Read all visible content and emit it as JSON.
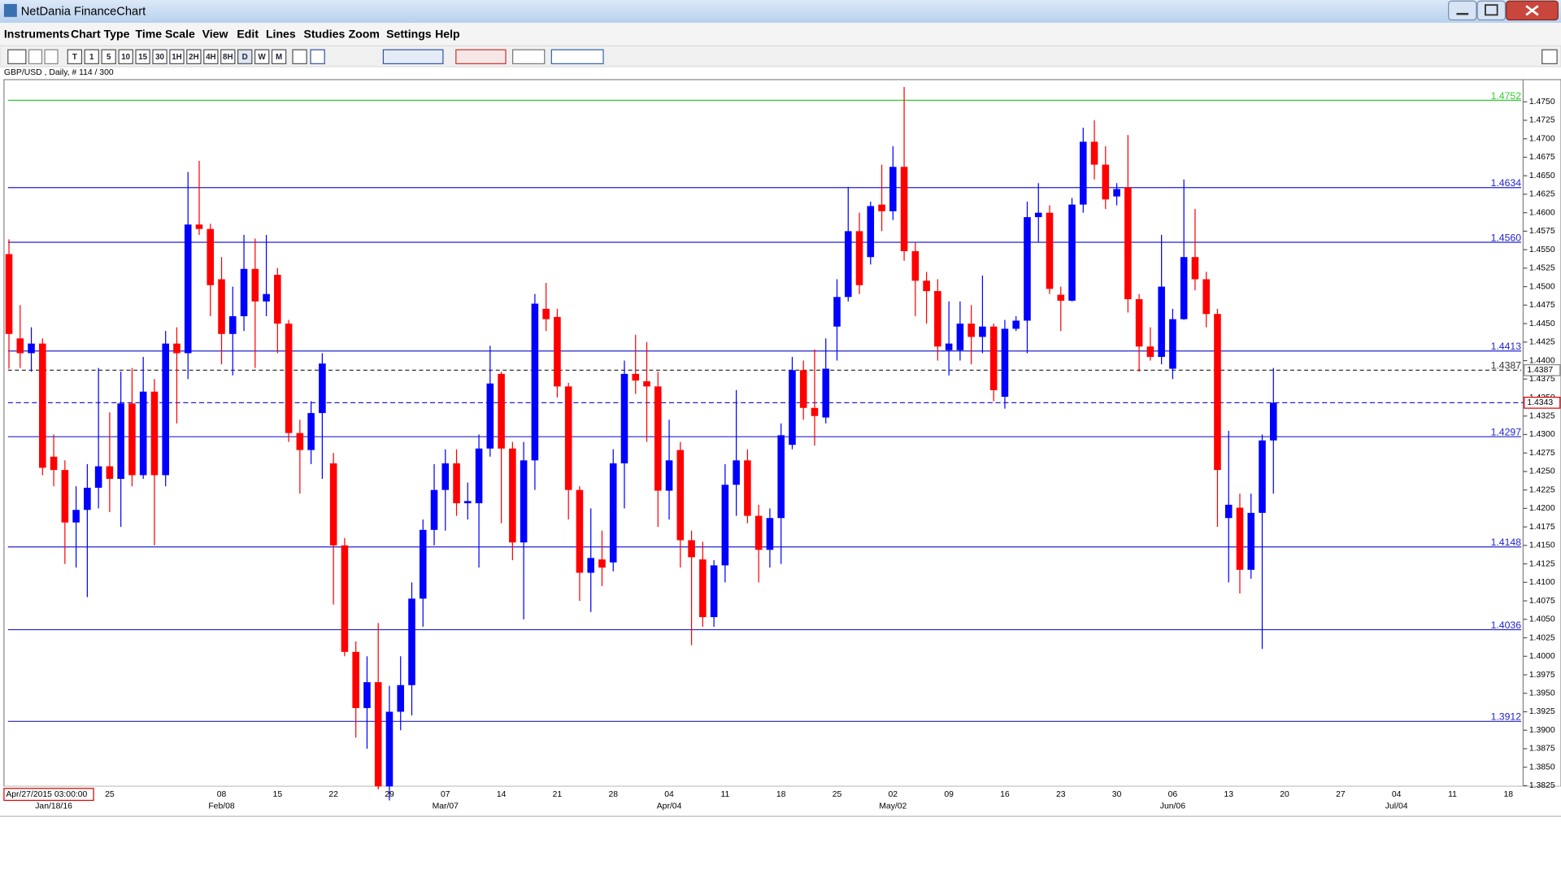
{
  "window_title": "NetDania FinanceChart",
  "menu": [
    "Instruments",
    "Chart Type",
    "Time Scale",
    "View",
    "Edit",
    "Lines",
    "Studies",
    "Zoom",
    "Settings",
    "Help"
  ],
  "toolbar": [
    "T",
    "1",
    "5",
    "10",
    "15",
    "30",
    "1H",
    "2H",
    "4H",
    "8H",
    "D",
    "W",
    "M"
  ],
  "chart_data": {
    "type": "candlestick",
    "title": "GBP/USD , Daily, # 114 / 300",
    "cursor_label": "Apr/27/2015 03:00:00",
    "up_color": "#0000ff",
    "down_color": "#ff0000",
    "categories": [
      null,
      null,
      null,
      null,
      null,
      null,
      null,
      null,
      null,
      "25",
      null,
      null,
      null,
      null,
      null,
      null,
      null,
      null,
      null,
      "08",
      null,
      null,
      null,
      null,
      "15",
      null,
      null,
      null,
      null,
      "22",
      null,
      null,
      null,
      null,
      "29",
      null,
      null,
      null,
      null,
      "07",
      null,
      null,
      null,
      null,
      "14",
      null,
      null,
      null,
      null,
      "21",
      null,
      null,
      null,
      null,
      "28",
      null,
      null,
      null,
      null,
      "04",
      null,
      null,
      null,
      null,
      "11",
      null,
      null,
      null,
      null,
      "18",
      null,
      null,
      null,
      null,
      "25",
      null,
      null,
      null,
      null,
      "02",
      null,
      null,
      null,
      null,
      "09",
      null,
      null,
      null,
      null,
      "16",
      null,
      null,
      null,
      null,
      "23",
      null,
      null,
      null,
      null,
      "30",
      null,
      null,
      null,
      null,
      "06",
      null,
      null,
      null,
      null,
      "13",
      null,
      null,
      null,
      null,
      "20",
      null,
      null,
      null,
      null,
      "27",
      null,
      null,
      null,
      null,
      "04",
      null,
      null,
      null,
      null,
      "11",
      null,
      null,
      null,
      null,
      "18",
      null
    ],
    "category_sublabels": [
      null,
      null,
      null,
      null,
      "Jan/18/16",
      null,
      null,
      null,
      null,
      null,
      null,
      null,
      null,
      null,
      null,
      null,
      null,
      null,
      null,
      "Feb/08",
      null,
      null,
      null,
      null,
      null,
      null,
      null,
      null,
      null,
      null,
      null,
      null,
      null,
      null,
      null,
      null,
      null,
      null,
      null,
      "Mar/07",
      null,
      null,
      null,
      null,
      null,
      null,
      null,
      null,
      null,
      null,
      null,
      null,
      null,
      null,
      null,
      null,
      null,
      null,
      null,
      "Apr/04",
      null,
      null,
      null,
      null,
      null,
      null,
      null,
      null,
      null,
      null,
      null,
      null,
      null,
      null,
      null,
      null,
      null,
      null,
      null,
      "May/02",
      null,
      null,
      null,
      null,
      null,
      null,
      null,
      null,
      null,
      null,
      null,
      null,
      null,
      null,
      null,
      null,
      null,
      null,
      null,
      null,
      null,
      null,
      null,
      null,
      "Jun/06",
      null,
      null,
      null,
      null,
      null,
      null,
      null,
      null,
      null,
      null,
      null,
      null,
      null,
      null,
      null,
      null,
      null,
      null,
      null,
      "Jul/04",
      null,
      null,
      null,
      null,
      null,
      null,
      null,
      null,
      null,
      null,
      null
    ],
    "open": [
      1.4544,
      1.443,
      1.441,
      1.4423,
      1.427,
      1.4252,
      1.4181,
      1.4198,
      1.4228,
      1.4257,
      1.424,
      1.4342,
      1.4245,
      1.4358,
      1.4245,
      1.4423,
      1.441,
      1.4584,
      1.4578,
      1.451,
      1.4436,
      1.446,
      1.4524,
      1.448,
      1.4516,
      1.445,
      1.4302,
      1.4279,
      1.4329,
      1.4261,
      1.415,
      1.4006,
      1.393,
      1.3965,
      1.3824,
      1.3925,
      1.3961,
      1.4078,
      1.4171,
      1.4225,
      1.4261,
      1.4207,
      1.4207,
      1.4281,
      1.4382,
      1.4281,
      1.4154,
      1.4265,
      1.447,
      1.4459,
      1.4365,
      1.4225,
      1.4113,
      1.4131,
      1.4127,
      1.4261,
      1.4382,
      1.4372,
      1.4365,
      1.4224,
      1.4279,
      1.4157,
      1.4131,
      1.4053,
      1.4123,
      1.4232,
      1.4265,
      1.419,
      1.4144,
      1.4187,
      1.4286,
      1.4387,
      1.4336,
      1.4323,
      1.4446,
      1.4486,
      1.4575,
      1.454,
      1.4611,
      1.4602,
      1.4662,
      1.4548,
      1.4508,
      1.4494,
      1.4414,
      1.4414,
      1.445,
      1.4432,
      1.4446,
      1.4351,
      1.4443,
      1.4454,
      1.4594,
      1.46,
      1.4489,
      1.4481,
      1.4611,
      1.4696,
      1.4665,
      1.4622,
      1.4634,
      1.4483,
      1.4419,
      1.4405,
      1.4389,
      1.4456,
      1.454,
      1.451,
      1.4463,
      1.4187,
      1.4201,
      1.4117,
      1.4194,
      1.4292,
      null,
      null,
      null,
      null,
      null,
      null,
      null,
      null,
      null,
      null,
      null,
      null,
      null,
      null,
      null,
      null,
      null,
      null,
      null,
      null,
      null,
      null
    ],
    "high": [
      1.4564,
      1.4475,
      1.4445,
      1.443,
      1.43,
      1.4265,
      1.423,
      1.426,
      1.439,
      1.433,
      1.4385,
      1.439,
      1.4405,
      1.4375,
      1.444,
      1.4445,
      1.4655,
      1.467,
      1.4585,
      1.454,
      1.45,
      1.457,
      1.4565,
      1.457,
      1.4525,
      1.4455,
      1.432,
      1.4345,
      1.441,
      1.4275,
      1.416,
      1.402,
      1.4,
      1.4045,
      1.396,
      1.4,
      1.41,
      1.4185,
      1.426,
      1.428,
      1.428,
      1.4235,
      1.43,
      1.442,
      1.4385,
      1.429,
      1.429,
      1.449,
      1.4505,
      1.447,
      1.437,
      1.423,
      1.42,
      1.417,
      1.428,
      1.44,
      1.4435,
      1.4425,
      1.4385,
      1.432,
      1.429,
      1.417,
      1.4155,
      1.413,
      1.426,
      1.436,
      1.428,
      1.4205,
      1.42,
      1.4315,
      1.4405,
      1.44,
      1.4415,
      1.443,
      1.451,
      1.4635,
      1.46,
      1.4615,
      1.4665,
      1.469,
      1.477,
      1.456,
      1.452,
      1.451,
      1.448,
      1.448,
      1.4475,
      1.4515,
      1.445,
      1.4455,
      1.446,
      1.4615,
      1.464,
      1.461,
      1.45,
      1.462,
      1.4715,
      1.4725,
      1.469,
      1.464,
      1.4705,
      1.449,
      1.4445,
      1.457,
      1.447,
      1.4645,
      1.4605,
      1.452,
      1.447,
      1.4305,
      1.422,
      1.422,
      1.43,
      1.439,
      null,
      null,
      null,
      null,
      null,
      null,
      null,
      null,
      null,
      null,
      null,
      null,
      null,
      null,
      null,
      null,
      null,
      null,
      null,
      null,
      null,
      null
    ],
    "low": [
      1.4389,
      1.439,
      1.4385,
      1.4245,
      1.423,
      1.4125,
      1.412,
      1.408,
      1.42,
      1.4195,
      1.4175,
      1.423,
      1.424,
      1.415,
      1.423,
      1.4315,
      1.4375,
      1.457,
      1.446,
      1.4395,
      1.438,
      1.444,
      1.439,
      1.446,
      1.441,
      1.429,
      1.422,
      1.426,
      1.424,
      1.407,
      1.4,
      1.389,
      1.3875,
      1.382,
      1.3805,
      1.39,
      1.392,
      1.404,
      1.415,
      1.417,
      1.419,
      1.4185,
      1.412,
      1.427,
      1.418,
      1.413,
      1.405,
      1.4225,
      1.444,
      1.435,
      1.4185,
      1.4075,
      1.406,
      1.4095,
      1.4115,
      1.42,
      1.4355,
      1.429,
      1.4175,
      1.4185,
      1.412,
      1.4015,
      1.404,
      1.404,
      1.41,
      1.419,
      1.418,
      1.41,
      1.412,
      1.4125,
      1.428,
      1.432,
      1.4285,
      1.4315,
      1.44,
      1.448,
      1.449,
      1.453,
      1.4575,
      1.459,
      1.4535,
      1.446,
      1.445,
      1.44,
      1.438,
      1.44,
      1.4395,
      1.441,
      1.4345,
      1.4335,
      1.444,
      1.441,
      1.456,
      1.449,
      1.444,
      1.448,
      1.46,
      1.4645,
      1.4605,
      1.461,
      1.4465,
      1.4385,
      1.44,
      1.4395,
      1.4375,
      1.4455,
      1.4495,
      1.4445,
      1.4175,
      1.41,
      1.4085,
      1.4105,
      1.401,
      1.422,
      null,
      null,
      null,
      null,
      null,
      null,
      null,
      null,
      null,
      null,
      null,
      null,
      null,
      null,
      null,
      null,
      null,
      null,
      null,
      null,
      null,
      null
    ],
    "close": [
      1.4436,
      1.441,
      1.4423,
      1.4255,
      1.4252,
      1.4181,
      1.4198,
      1.4228,
      1.4257,
      1.424,
      1.4342,
      1.4245,
      1.4358,
      1.4245,
      1.4423,
      1.441,
      1.4584,
      1.4578,
      1.4502,
      1.4436,
      1.446,
      1.4524,
      1.448,
      1.449,
      1.445,
      1.4302,
      1.4279,
      1.4329,
      1.4396,
      1.415,
      1.4006,
      1.393,
      1.3965,
      1.3824,
      1.3925,
      1.3961,
      1.4078,
      1.4171,
      1.4225,
      1.4261,
      1.4207,
      1.421,
      1.4281,
      1.4369,
      1.4281,
      1.4154,
      1.4265,
      1.4477,
      1.4456,
      1.4365,
      1.4225,
      1.4113,
      1.4133,
      1.412,
      1.4261,
      1.4382,
      1.4373,
      1.4365,
      1.4224,
      1.4265,
      1.4157,
      1.4134,
      1.4053,
      1.4123,
      1.4232,
      1.4265,
      1.419,
      1.4144,
      1.4187,
      1.4299,
      1.4387,
      1.4336,
      1.4325,
      1.4389,
      1.4486,
      1.4575,
      1.4502,
      1.4609,
      1.4602,
      1.4662,
      1.4548,
      1.4508,
      1.4494,
      1.4419,
      1.4423,
      1.445,
      1.4432,
      1.4446,
      1.436,
      1.4443,
      1.4454,
      1.4594,
      1.46,
      1.4497,
      1.4481,
      1.4611,
      1.4696,
      1.4665,
      1.4618,
      1.4632,
      1.4483,
      1.4419,
      1.4405,
      1.45,
      1.4456,
      1.454,
      1.451,
      1.4463,
      1.4252,
      1.4205,
      1.4117,
      1.4194,
      1.4292,
      1.4343,
      null,
      null,
      null,
      null,
      null,
      null,
      null,
      null,
      null,
      null,
      null,
      null,
      null,
      null,
      null,
      null,
      null,
      null,
      null,
      null,
      null,
      null
    ],
    "levels": {
      "values": [
        1.4752,
        1.4634,
        1.456,
        1.4413,
        1.4387,
        1.4297,
        1.4148,
        1.4036,
        1.3912
      ],
      "value_labels": [
        "1.4752",
        "1.4634",
        "1.4560",
        "1.4413",
        "1.4387",
        "1.4297",
        "1.4148",
        "1.4036",
        "1.3912"
      ],
      "colors": [
        "#33cc33",
        "#2222cc",
        "#2222cc",
        "#2222cc",
        "#333333",
        "#2222cc",
        "#2222cc",
        "#2222cc",
        "#2222cc"
      ],
      "dashed": [
        false,
        false,
        false,
        false,
        true,
        false,
        false,
        false,
        false
      ]
    },
    "last_price": {
      "value": 1.4343,
      "label": "1.4343",
      "color": "#2222cc"
    },
    "ylim": [
      1.3824,
      1.478
    ],
    "yticks": [
      {
        "value": 1.475,
        "label": "1.4750"
      },
      1.4725,
      {
        "value": 1.47,
        "label": "1.4700"
      },
      1.4675,
      {
        "value": 1.465,
        "label": "1.4650"
      },
      1.4625,
      {
        "value": 1.46,
        "label": "1.4600"
      },
      1.4575,
      {
        "value": 1.455,
        "label": "1.4550"
      },
      1.4525,
      {
        "value": 1.45,
        "label": "1.4500"
      },
      1.4475,
      {
        "value": 1.445,
        "label": "1.4450"
      },
      1.4425,
      {
        "value": 1.44,
        "label": "1.4400"
      },
      1.4375,
      {
        "value": 1.435,
        "label": "1.4350"
      },
      1.4325,
      {
        "value": 1.43,
        "label": "1.4300"
      },
      1.4275,
      {
        "value": 1.425,
        "label": "1.4250"
      },
      1.4225,
      {
        "value": 1.42,
        "label": "1.4200"
      },
      1.4175,
      {
        "value": 1.415,
        "label": "1.4150"
      },
      1.4125,
      {
        "value": 1.41,
        "label": "1.4100"
      },
      1.4075,
      {
        "value": 1.405,
        "label": "1.4050"
      },
      1.4025,
      {
        "value": 1.4,
        "label": "1.4000"
      },
      1.3975,
      {
        "value": 1.395,
        "label": "1.3950"
      },
      1.3925,
      {
        "value": 1.39,
        "label": "1.3900"
      },
      1.3875,
      {
        "value": 1.385,
        "label": "1.3850"
      },
      1.3825
    ]
  }
}
